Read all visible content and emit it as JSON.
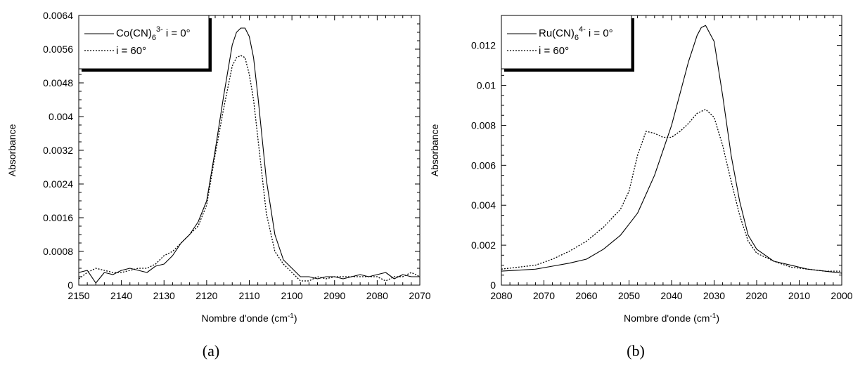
{
  "chart_data": [
    {
      "type": "line",
      "panel_label": "(a)",
      "xlabel": "Nombre d'onde (cm",
      "xlabel_sup": "-1",
      "xlabel_end": ")",
      "ylabel": "Absorbance",
      "xlim": [
        2150,
        2070
      ],
      "ylim": [
        0,
        0.0064
      ],
      "x_reversed": true,
      "xticks": [
        2150,
        2140,
        2130,
        2120,
        2110,
        2100,
        2090,
        2080,
        2070
      ],
      "xtick_labels": [
        "2150",
        "2140",
        "2130",
        "2120",
        "2110",
        "2100",
        "2090",
        "2080",
        "2070"
      ],
      "yticks": [
        0,
        0.0008,
        0.0016,
        0.0024,
        0.0032,
        0.004,
        0.0048,
        0.0056,
        0.0064
      ],
      "ytick_labels": [
        "0",
        "0.0008",
        "0.0016",
        "0.0024",
        "0.0032",
        "0.004",
        "0.0048",
        "0.0056",
        "0.0064"
      ],
      "legend": {
        "position": "top-left",
        "entry1": {
          "base": "Co(CN)",
          "sub": "6",
          "sup": "3-",
          "rest": " i = 0°"
        },
        "entry2": {
          "text": "i = 60°"
        }
      },
      "series": [
        {
          "style": "solid",
          "x": [
            2150,
            2148,
            2146,
            2144,
            2142,
            2140,
            2138,
            2136,
            2134,
            2132,
            2130,
            2128,
            2126,
            2124,
            2122,
            2120,
            2118,
            2116,
            2114,
            2113,
            2112,
            2111,
            2110,
            2109,
            2108,
            2107,
            2106,
            2104,
            2102,
            2100,
            2098,
            2096,
            2094,
            2092,
            2090,
            2088,
            2086,
            2084,
            2082,
            2080,
            2078,
            2076,
            2074,
            2072,
            2070
          ],
          "y": [
            0.0003,
            0.00035,
            5e-05,
            0.0003,
            0.00025,
            0.00035,
            0.0004,
            0.00035,
            0.0003,
            0.00045,
            0.0005,
            0.0007,
            0.001,
            0.0012,
            0.0015,
            0.002,
            0.0032,
            0.0045,
            0.0057,
            0.006,
            0.0061,
            0.0061,
            0.0059,
            0.0054,
            0.0045,
            0.0035,
            0.0025,
            0.0012,
            0.0006,
            0.0004,
            0.0002,
            0.0002,
            0.00015,
            0.0002,
            0.0002,
            0.00015,
            0.0002,
            0.00025,
            0.0002,
            0.00025,
            0.0003,
            0.00015,
            0.00025,
            0.0002,
            0.0002
          ]
        },
        {
          "style": "dotted",
          "x": [
            2150,
            2148,
            2146,
            2144,
            2142,
            2140,
            2138,
            2136,
            2134,
            2132,
            2130,
            2128,
            2126,
            2124,
            2122,
            2120,
            2118,
            2116,
            2114,
            2113,
            2112,
            2111,
            2110,
            2109,
            2108,
            2107,
            2106,
            2104,
            2102,
            2100,
            2098,
            2096,
            2094,
            2092,
            2090,
            2088,
            2086,
            2084,
            2082,
            2080,
            2078,
            2076,
            2074,
            2072,
            2070
          ],
          "y": [
            0.00015,
            0.0003,
            0.0004,
            0.00035,
            0.0003,
            0.0003,
            0.00035,
            0.0004,
            0.0004,
            0.0005,
            0.0007,
            0.0008,
            0.001,
            0.0012,
            0.0014,
            0.0019,
            0.0031,
            0.0042,
            0.0052,
            0.0054,
            0.00545,
            0.0054,
            0.005,
            0.0044,
            0.0035,
            0.0026,
            0.0017,
            0.0008,
            0.0005,
            0.0003,
            0.0001,
            0.0001,
            0.0002,
            0.00015,
            0.0002,
            0.0002,
            0.0002,
            0.0002,
            0.0002,
            0.0002,
            0.0001,
            0.0002,
            0.0002,
            0.0003,
            0.0002
          ]
        }
      ]
    },
    {
      "type": "line",
      "panel_label": "(b)",
      "xlabel": "Nombre d'onde (cm",
      "xlabel_sup": "-1",
      "xlabel_end": ")",
      "ylabel": "Absorbance",
      "xlim": [
        2080,
        2000
      ],
      "ylim": [
        0,
        0.0135
      ],
      "x_reversed": true,
      "xticks": [
        2080,
        2070,
        2060,
        2050,
        2040,
        2030,
        2020,
        2010,
        2000
      ],
      "xtick_labels": [
        "2080",
        "2070",
        "2060",
        "2050",
        "2040",
        "2030",
        "2020",
        "2010",
        "2000"
      ],
      "yticks": [
        0,
        0.002,
        0.004,
        0.006,
        0.008,
        0.01,
        0.012
      ],
      "ytick_labels": [
        "0",
        "0.002",
        "0.004",
        "0.006",
        "0.008",
        "0.01",
        "0.012"
      ],
      "legend": {
        "position": "top-left",
        "entry1": {
          "base": "Ru(CN)",
          "sub": "6",
          "sup": "4-",
          "rest": " i = 0°"
        },
        "entry2": {
          "text": "i = 60°"
        }
      },
      "series": [
        {
          "style": "solid",
          "x": [
            2080,
            2076,
            2072,
            2068,
            2064,
            2060,
            2056,
            2052,
            2048,
            2044,
            2040,
            2036,
            2034,
            2033,
            2032,
            2030,
            2028,
            2026,
            2024,
            2022,
            2020,
            2016,
            2012,
            2008,
            2004,
            2000
          ],
          "y": [
            0.0007,
            0.00075,
            0.0008,
            0.00095,
            0.0011,
            0.0013,
            0.0018,
            0.0025,
            0.0036,
            0.0055,
            0.008,
            0.0112,
            0.0125,
            0.0129,
            0.013,
            0.0122,
            0.0095,
            0.0065,
            0.0042,
            0.0025,
            0.0018,
            0.0012,
            0.001,
            0.0008,
            0.0007,
            0.0006
          ]
        },
        {
          "style": "dotted",
          "x": [
            2080,
            2076,
            2072,
            2068,
            2064,
            2060,
            2056,
            2052,
            2050,
            2048,
            2046,
            2044,
            2042,
            2040,
            2038,
            2036,
            2034,
            2032,
            2030,
            2028,
            2026,
            2024,
            2022,
            2020,
            2016,
            2012,
            2008,
            2004,
            2000
          ],
          "y": [
            0.0008,
            0.0009,
            0.001,
            0.0013,
            0.0017,
            0.0022,
            0.0029,
            0.0038,
            0.0047,
            0.0065,
            0.0077,
            0.0076,
            0.0074,
            0.0074,
            0.0077,
            0.0081,
            0.0086,
            0.0088,
            0.0084,
            0.007,
            0.0052,
            0.0035,
            0.0022,
            0.0016,
            0.0012,
            0.0009,
            0.0008,
            0.0007,
            0.0007
          ]
        }
      ]
    }
  ]
}
